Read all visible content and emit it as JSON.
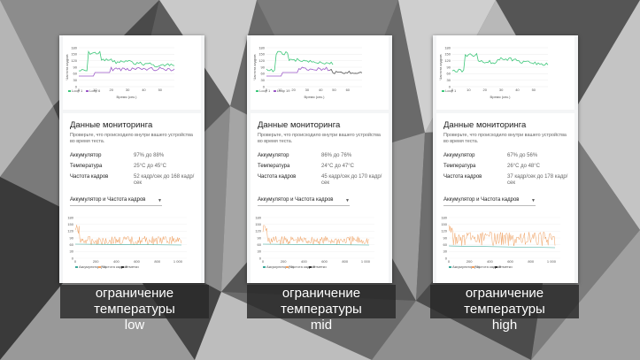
{
  "panels": [
    {
      "id": "low",
      "fps_chart": {
        "y_label": "Частота кадров",
        "x_label": "Время (сек.)",
        "y_ticks": [
          "180",
          "150",
          "120",
          "90",
          "60",
          "30",
          "0"
        ],
        "x_ticks": [
          "0",
          "10",
          "20",
          "30",
          "40",
          "50"
        ],
        "legend": [
          "Loop 1",
          "Loop 6"
        ]
      },
      "monitor": {
        "title": "Данные мониторинга",
        "description": "Проверьте, что происходило внутри вашего устройства во время теста.",
        "rows": [
          {
            "label": "Аккумулятор",
            "value": "97% до 88%"
          },
          {
            "label": "Температура",
            "value": "25°C до 45°C"
          },
          {
            "label": "Частота кадров",
            "value": "52 кадр/сек до 168 кадр/сек"
          }
        ],
        "dropdown": "Аккумулятор и Частота кадров",
        "caret": "▼"
      },
      "battery_chart": {
        "y_ticks": [
          "180",
          "150",
          "120",
          "90",
          "60",
          "30",
          "0"
        ],
        "x_ticks": [
          "0",
          "200",
          "400",
          "600",
          "800",
          "1 000"
        ],
        "legend": [
          "Аккумулятор (%)",
          "Частота кадров",
          "Отметки"
        ]
      },
      "caption_line1": "ограничение температуры",
      "caption_line2": "low"
    },
    {
      "id": "mid",
      "fps_chart": {
        "y_label": "Частота кадров",
        "x_label": "Время (сек.)",
        "y_ticks": [
          "180",
          "150",
          "120",
          "90",
          "60",
          "30",
          "0"
        ],
        "x_ticks": [
          "0",
          "10",
          "20",
          "30",
          "40",
          "50",
          "60"
        ],
        "legend": [
          "Loop 1",
          "Loop 19"
        ]
      },
      "monitor": {
        "title": "Данные мониторинга",
        "description": "Проверьте, что происходило внутри вашего устройства во время теста.",
        "rows": [
          {
            "label": "Аккумулятор",
            "value": "86% до 76%"
          },
          {
            "label": "Температура",
            "value": "24°C до 47°C"
          },
          {
            "label": "Частота кадров",
            "value": "45 кадр/сек до 170 кадр/сек"
          }
        ],
        "dropdown": "Аккумулятор и Частота кадров",
        "caret": "▼"
      },
      "battery_chart": {
        "y_ticks": [
          "180",
          "150",
          "120",
          "90",
          "60",
          "30",
          "0"
        ],
        "x_ticks": [
          "0",
          "200",
          "400",
          "600",
          "800",
          "1 000"
        ],
        "legend": [
          "Аккумулятор (%)",
          "Частота кадров",
          "Отметки"
        ]
      },
      "caption_line1": "ограничение температуры",
      "caption_line2": "mid"
    },
    {
      "id": "high",
      "fps_chart": {
        "y_label": "Частота кадров",
        "x_label": "Время (сек.)",
        "y_ticks": [
          "180",
          "150",
          "120",
          "90",
          "60",
          "30",
          "0"
        ],
        "x_ticks": [
          "0",
          "10",
          "20",
          "30",
          "40",
          "50"
        ],
        "legend": [
          "Loop 1"
        ]
      },
      "monitor": {
        "title": "Данные мониторинга",
        "description": "Проверьте, что происходило внутри вашего устройства во время теста.",
        "rows": [
          {
            "label": "Аккумулятор",
            "value": "67% до 56%"
          },
          {
            "label": "Температура",
            "value": "26°C до 48°C"
          },
          {
            "label": "Частота кадров",
            "value": "37 кадр/сек до 178 кадр/сек"
          }
        ],
        "dropdown": "Аккумулятор и Частота кадров",
        "caret": "▼"
      },
      "battery_chart": {
        "y_ticks": [
          "180",
          "150",
          "120",
          "90",
          "60",
          "30",
          "0"
        ],
        "x_ticks": [
          "0",
          "200",
          "400",
          "600",
          "800",
          "1 000"
        ],
        "legend": [
          "Аккумулятор (%)",
          "Частота кадров",
          "Отметки"
        ]
      },
      "caption_line1": "ограничение температуры",
      "caption_line2": "high"
    }
  ],
  "colors": {
    "loop_green": "#3ec77a",
    "loop_purple": "#9b59c7",
    "loop_dark": "#555555",
    "fps_orange": "#f0a060",
    "battery_teal": "#3aa89a"
  }
}
